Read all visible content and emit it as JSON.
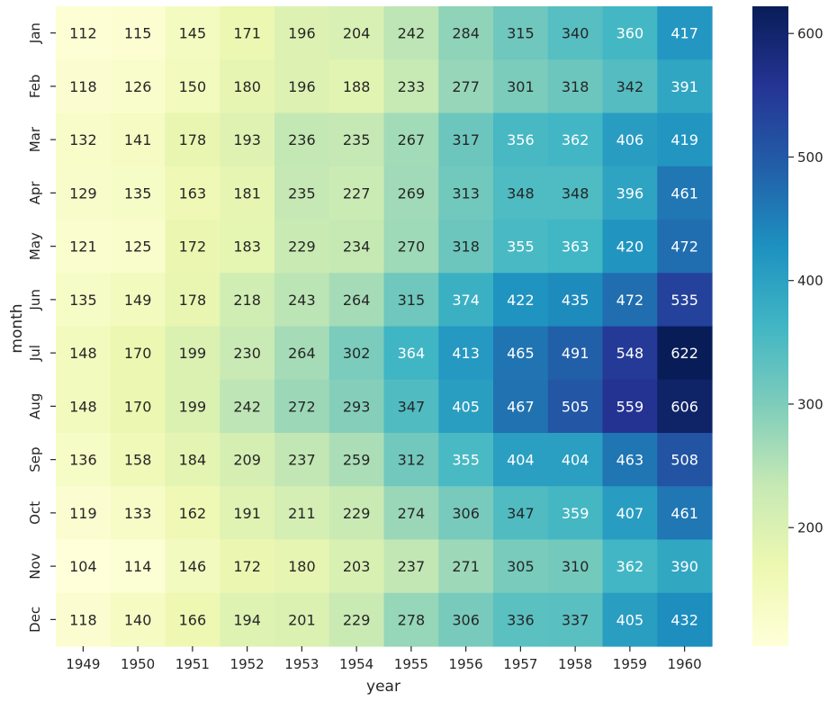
{
  "chart_data": {
    "type": "heatmap",
    "xlabel": "year",
    "ylabel": "month",
    "x_categories": [
      "1949",
      "1950",
      "1951",
      "1952",
      "1953",
      "1954",
      "1955",
      "1956",
      "1957",
      "1958",
      "1959",
      "1960"
    ],
    "y_categories": [
      "Jan",
      "Feb",
      "Mar",
      "Apr",
      "May",
      "Jun",
      "Jul",
      "Aug",
      "Sep",
      "Oct",
      "Nov",
      "Dec"
    ],
    "values": [
      [
        112,
        115,
        145,
        171,
        196,
        204,
        242,
        284,
        315,
        340,
        360,
        417
      ],
      [
        118,
        126,
        150,
        180,
        196,
        188,
        233,
        277,
        301,
        318,
        342,
        391
      ],
      [
        132,
        141,
        178,
        193,
        236,
        235,
        267,
        317,
        356,
        362,
        406,
        419
      ],
      [
        129,
        135,
        163,
        181,
        235,
        227,
        269,
        313,
        348,
        348,
        396,
        461
      ],
      [
        121,
        125,
        172,
        183,
        229,
        234,
        270,
        318,
        355,
        363,
        420,
        472
      ],
      [
        135,
        149,
        178,
        218,
        243,
        264,
        315,
        374,
        422,
        435,
        472,
        535
      ],
      [
        148,
        170,
        199,
        230,
        264,
        302,
        364,
        413,
        465,
        491,
        548,
        622
      ],
      [
        148,
        170,
        199,
        242,
        272,
        293,
        347,
        405,
        467,
        505,
        559,
        606
      ],
      [
        136,
        158,
        184,
        209,
        237,
        259,
        312,
        355,
        404,
        404,
        463,
        508
      ],
      [
        119,
        133,
        162,
        191,
        211,
        229,
        274,
        306,
        347,
        359,
        407,
        461
      ],
      [
        104,
        114,
        146,
        172,
        180,
        203,
        237,
        271,
        305,
        310,
        362,
        390
      ],
      [
        118,
        140,
        166,
        194,
        201,
        229,
        278,
        306,
        336,
        337,
        405,
        432
      ]
    ],
    "colormap": "YlGnBu",
    "color_range": [
      104,
      622
    ],
    "colorbar_ticks": [
      200,
      300,
      400,
      500,
      600
    ],
    "annotations": true,
    "grid": false
  }
}
